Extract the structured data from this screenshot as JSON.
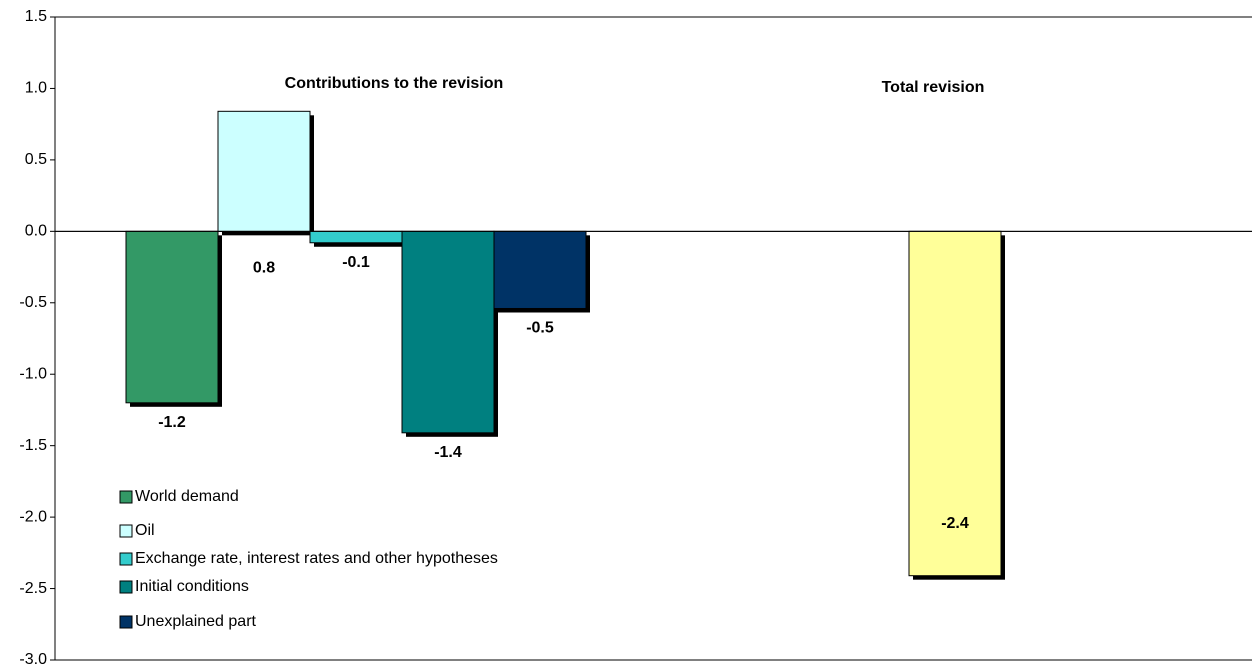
{
  "chart_data": {
    "type": "bar",
    "annotations": [
      "Contributions to the revision",
      "Total revision"
    ],
    "series": [
      {
        "name": "World demand",
        "color": "#339966",
        "values": [
          -1.2
        ],
        "value_labels": [
          "-1.2"
        ]
      },
      {
        "name": "Oil",
        "color": "#ccffff",
        "values": [
          0.84
        ],
        "value_labels": [
          "0.8"
        ]
      },
      {
        "name": "Exchange rate, interest rates and other hypotheses",
        "color": "#33cccc",
        "values": [
          -0.08
        ],
        "value_labels": [
          "-0.1"
        ]
      },
      {
        "name": "Initial conditions",
        "color": "#008080",
        "values": [
          -1.41
        ],
        "value_labels": [
          "-1.4"
        ]
      },
      {
        "name": "Unexplained part",
        "color": "#003366",
        "values": [
          -0.54
        ],
        "value_labels": [
          "-0.5"
        ]
      }
    ],
    "total": {
      "color": "#ffff99",
      "values": [
        -2.41
      ],
      "value_labels": [
        "-2.4"
      ]
    },
    "ylim": [
      -3.0,
      1.5
    ],
    "yticks": [
      1.5,
      {
        "value": 1.0,
        "label": "1.0"
      },
      0.5,
      {
        "value": 0.0,
        "label": "0.0"
      },
      -0.5,
      {
        "value": -1.0,
        "label": "-1.0"
      },
      -1.5,
      {
        "value": -2.0,
        "label": "-2.0"
      },
      -2.5,
      {
        "value": -3.0,
        "label": "-3.0"
      }
    ]
  }
}
